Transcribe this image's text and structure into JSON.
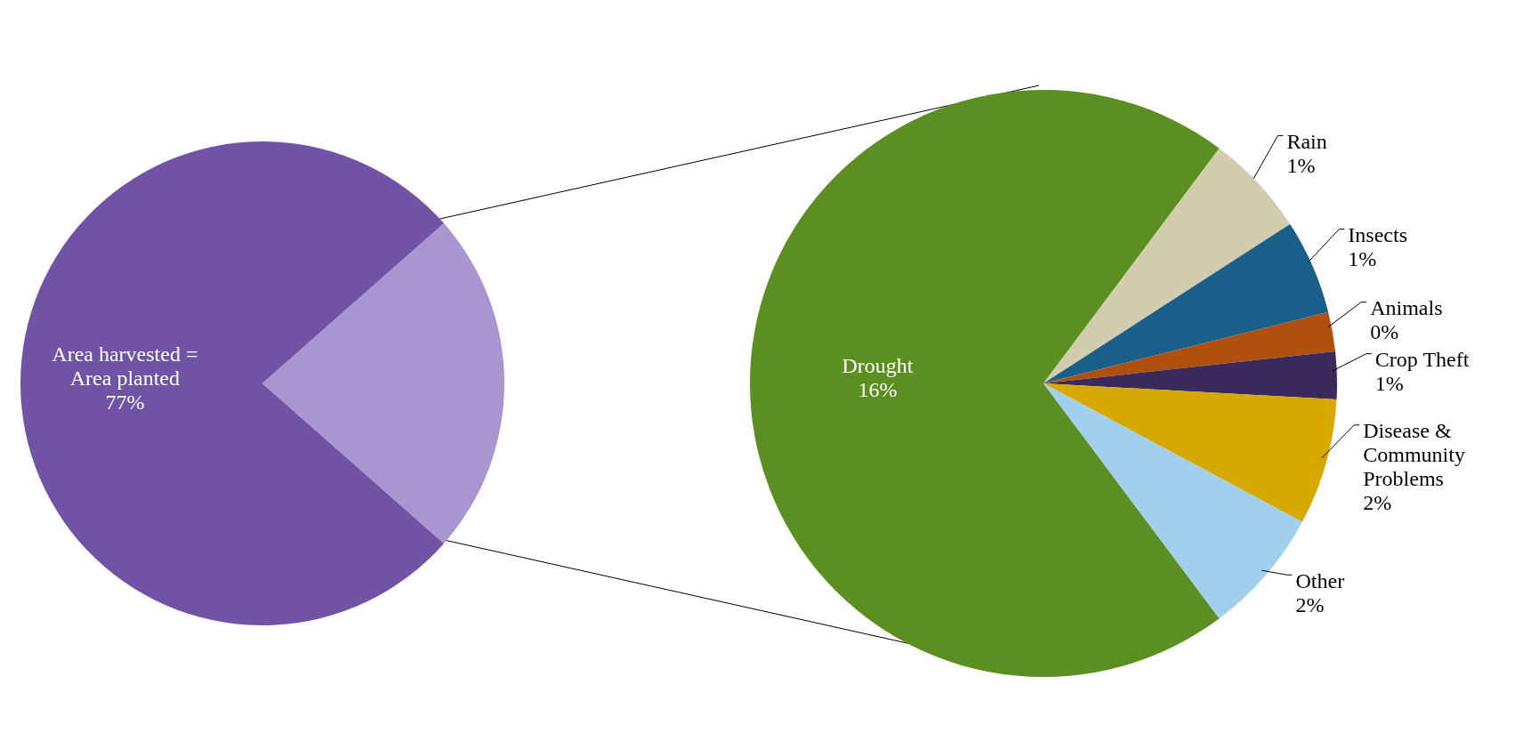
{
  "chart_data": [
    {
      "type": "pie",
      "categories": [
        "Area harvested = Area planted",
        null
      ],
      "values": [
        77,
        23
      ],
      "colors": [
        "#7053a5",
        "#a995d0"
      ],
      "value_labels": [
        "77%",
        null
      ]
    },
    {
      "type": "pie",
      "categories": [
        "Drought",
        "Rain",
        "Insects",
        "Animals",
        "Crop Theft",
        "Disease & Community Problems",
        "Other"
      ],
      "values": [
        16.2,
        1.3,
        1.2,
        0.5,
        0.6,
        1.6,
        1.6
      ],
      "colors": [
        "#5b8f22",
        "#d2cdae",
        "#1a5e8a",
        "#b0500f",
        "#3a2a5c",
        "#d6a800",
        "#a2d0ec"
      ],
      "value_labels": [
        "16%",
        "1%",
        "1%",
        "0%",
        "1%",
        "2%",
        "2%"
      ]
    }
  ]
}
